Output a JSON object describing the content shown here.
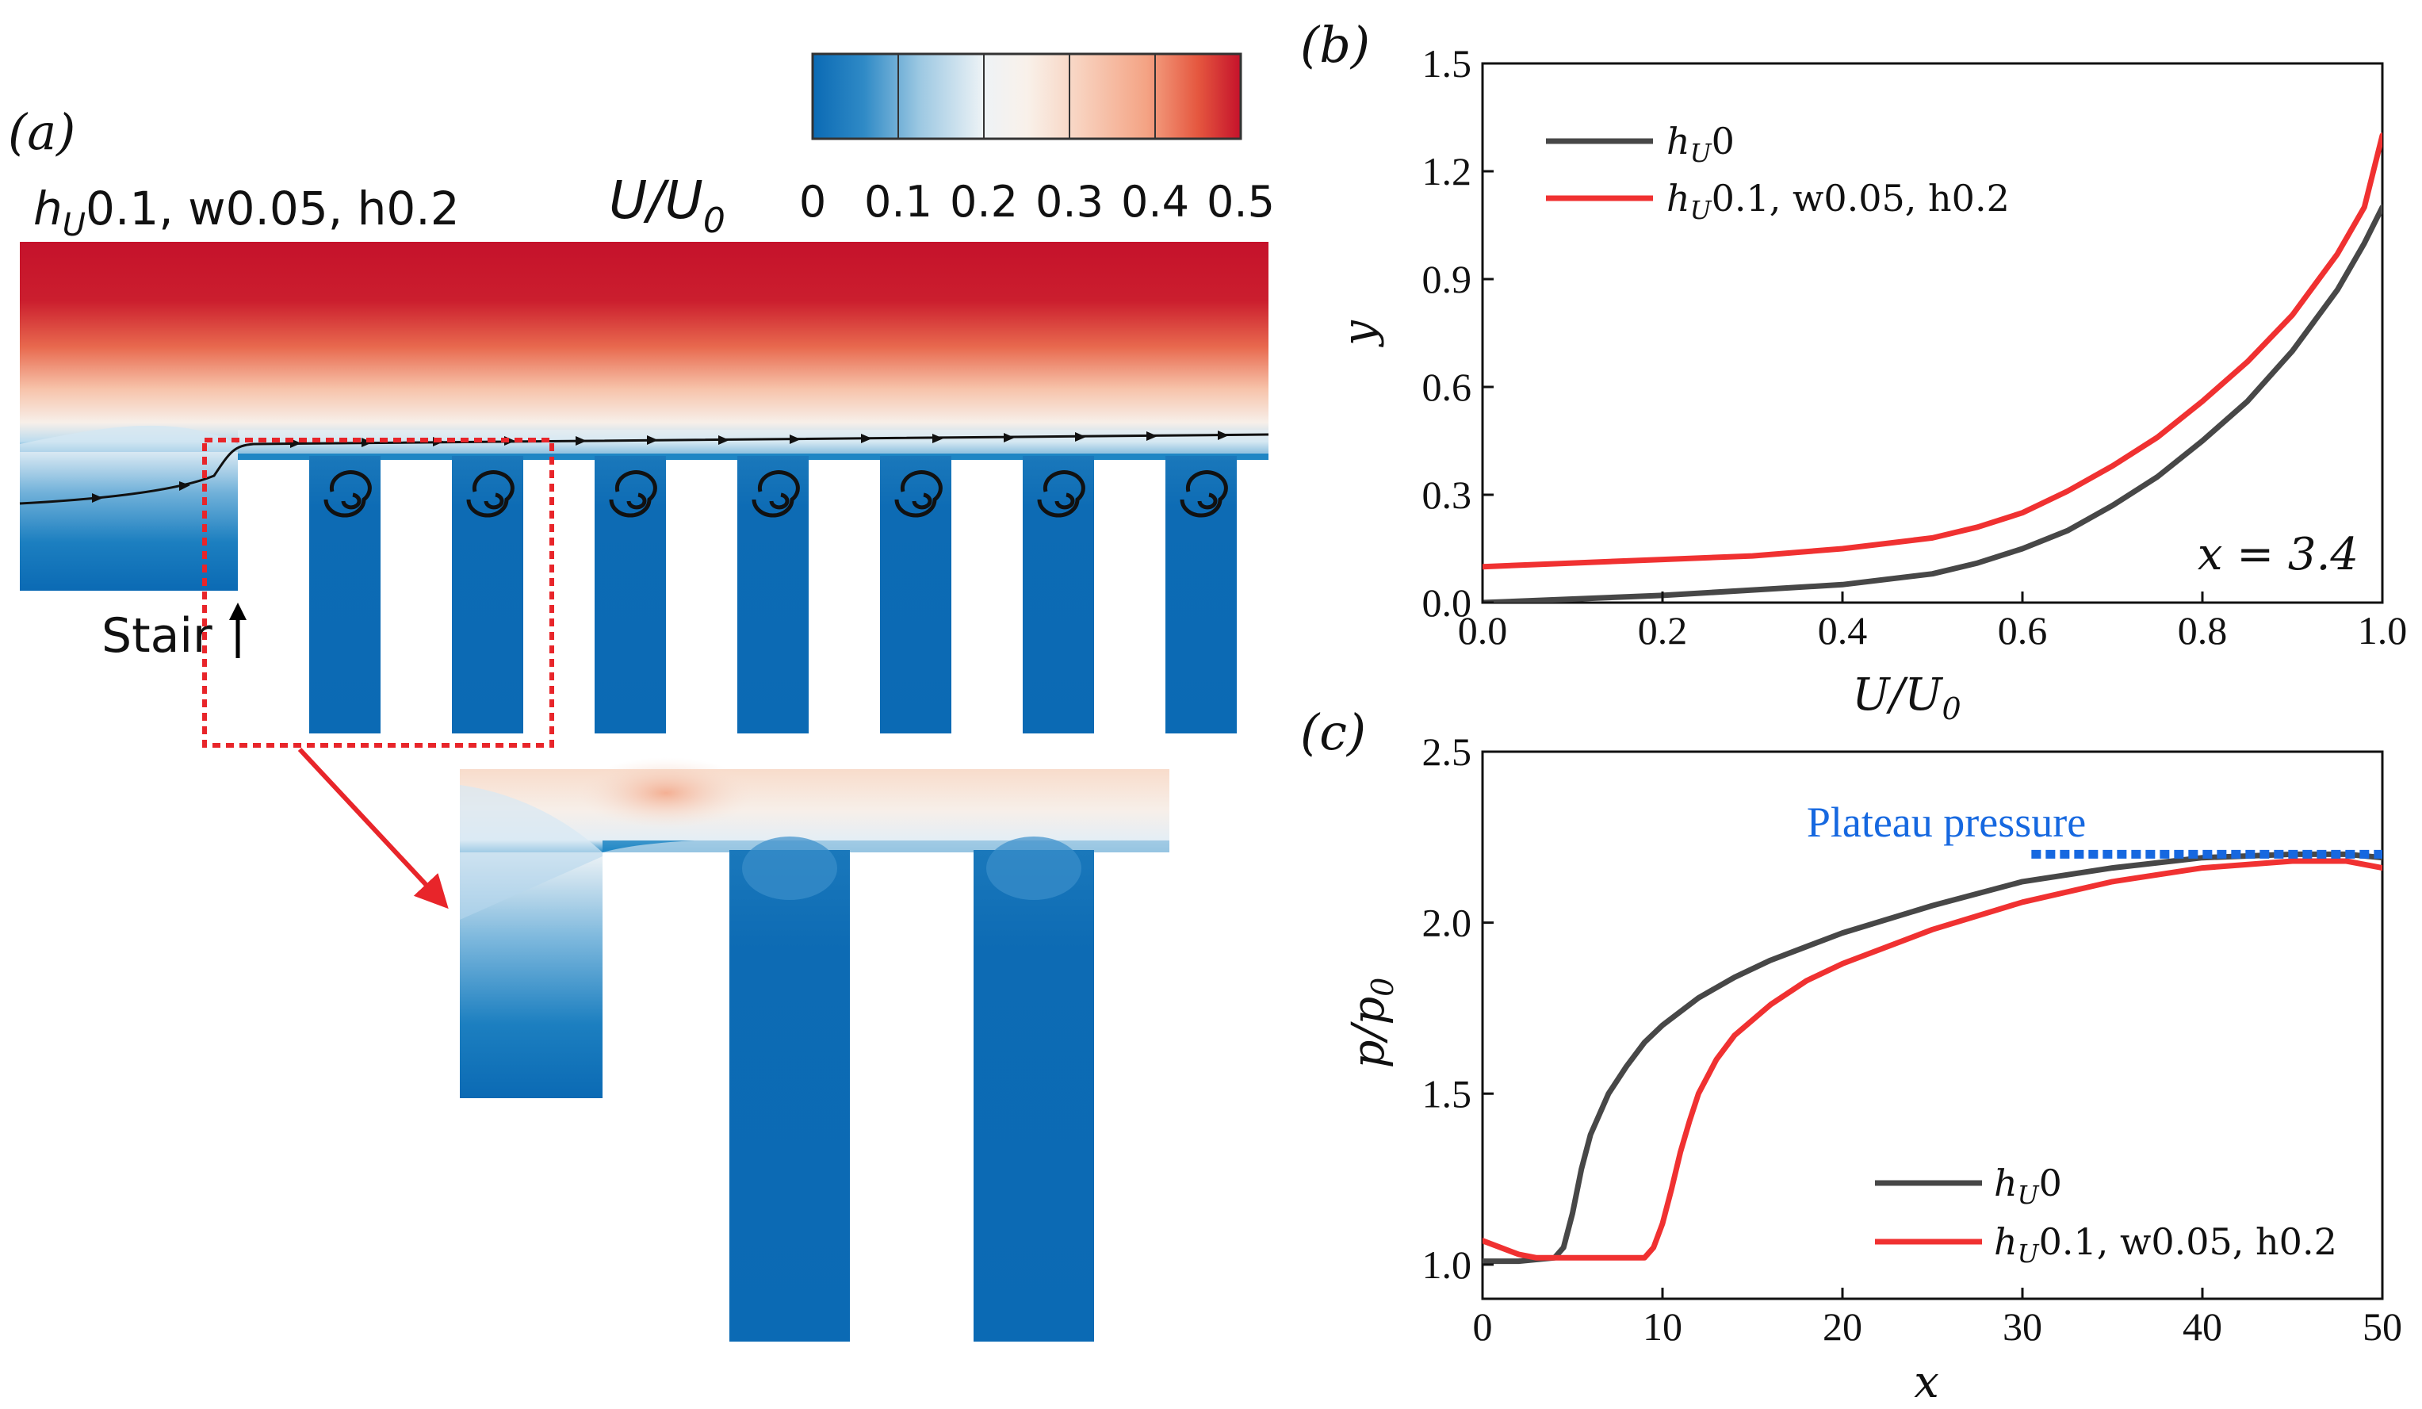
{
  "panels": {
    "a": "(a)",
    "b": "(b)",
    "c": "(c)"
  },
  "panel_a": {
    "case_label_h": "h",
    "case_label_sub": "U",
    "case_label_rest": "0.1, w0.05, h0.2",
    "colorbar_label_main": "U/U",
    "colorbar_label_sub": "0",
    "colorbar_ticks": [
      "0",
      "0.1",
      "0.2",
      "0.3",
      "0.4",
      "0.5"
    ],
    "stair_label": "Stair",
    "colors": {
      "low": "#0b6ab4",
      "mid": "#f6f4f2",
      "high": "#c5122b",
      "zoom_box": "#e8252a"
    }
  },
  "chart_data": [
    {
      "type": "line",
      "panel": "b",
      "title": "",
      "xlabel_main": "U/U",
      "xlabel_sub": "0",
      "ylabel": "y",
      "xlim": [
        0,
        1.0
      ],
      "ylim": [
        0,
        1.5
      ],
      "xticks": [
        "0.0",
        "0.2",
        "0.4",
        "0.6",
        "0.8",
        "1.0"
      ],
      "yticks": [
        "0.0",
        "0.3",
        "0.6",
        "0.9",
        "1.2",
        "1.5"
      ],
      "annotation": "x = 3.4",
      "legend_position": "top-left",
      "series": [
        {
          "name": "hU0",
          "legend_h": "h",
          "legend_sub": "U",
          "legend_rest": "0",
          "color": "#474747",
          "x": [
            0.0,
            0.1,
            0.2,
            0.3,
            0.4,
            0.5,
            0.55,
            0.6,
            0.65,
            0.7,
            0.75,
            0.8,
            0.85,
            0.9,
            0.95,
            0.98,
            1.0
          ],
          "y": [
            0.0,
            0.01,
            0.02,
            0.035,
            0.05,
            0.08,
            0.11,
            0.15,
            0.2,
            0.27,
            0.35,
            0.45,
            0.56,
            0.7,
            0.87,
            1.0,
            1.1
          ]
        },
        {
          "name": "hU0.1, w0.05, h0.2",
          "legend_h": "h",
          "legend_sub": "U",
          "legend_rest": "0.1, w0.05, h0.2",
          "color": "#f03131",
          "x": [
            0.0,
            0.1,
            0.2,
            0.3,
            0.4,
            0.5,
            0.55,
            0.6,
            0.65,
            0.7,
            0.75,
            0.8,
            0.85,
            0.9,
            0.95,
            0.98,
            1.0
          ],
          "y": [
            0.1,
            0.11,
            0.12,
            0.13,
            0.15,
            0.18,
            0.21,
            0.25,
            0.31,
            0.38,
            0.46,
            0.56,
            0.67,
            0.8,
            0.97,
            1.1,
            1.3
          ]
        }
      ]
    },
    {
      "type": "line",
      "panel": "c",
      "title": "",
      "xlabel": "x",
      "ylabel_main": "p/p",
      "ylabel_sub": "0",
      "xlim": [
        0,
        50
      ],
      "ylim": [
        0.9,
        2.5
      ],
      "xticks": [
        "0",
        "10",
        "20",
        "30",
        "40",
        "50"
      ],
      "yticks": [
        "1.0",
        "1.5",
        "2.0",
        "2.5"
      ],
      "annotation": "Plateau pressure",
      "annotation_color": "#1668e0",
      "plateau_level": 2.2,
      "plateau_x": [
        30.5,
        50
      ],
      "legend_position": "bottom-right",
      "series": [
        {
          "name": "hU0",
          "legend_h": "h",
          "legend_sub": "U",
          "legend_rest": "0",
          "color": "#474747",
          "x": [
            0,
            2,
            4,
            4.5,
            5,
            5.5,
            6,
            7,
            8,
            9,
            10,
            12,
            14,
            16,
            18,
            20,
            25,
            30,
            35,
            40,
            45,
            48,
            50
          ],
          "y": [
            1.01,
            1.01,
            1.02,
            1.05,
            1.15,
            1.28,
            1.38,
            1.5,
            1.58,
            1.65,
            1.7,
            1.78,
            1.84,
            1.89,
            1.93,
            1.97,
            2.05,
            2.12,
            2.16,
            2.19,
            2.2,
            2.2,
            2.19
          ]
        },
        {
          "name": "hU0.1, w0.05, h0.2",
          "legend_h": "h",
          "legend_sub": "U",
          "legend_rest": "0.1, w0.05, h0.2",
          "color": "#f03131",
          "x": [
            0,
            1,
            2,
            3,
            4,
            5,
            7,
            9,
            9.5,
            10,
            10.5,
            11,
            11.5,
            12,
            13,
            14,
            16,
            18,
            20,
            25,
            30,
            35,
            40,
            45,
            48,
            50
          ],
          "y": [
            1.07,
            1.05,
            1.03,
            1.02,
            1.02,
            1.02,
            1.02,
            1.02,
            1.05,
            1.12,
            1.22,
            1.33,
            1.42,
            1.5,
            1.6,
            1.67,
            1.76,
            1.83,
            1.88,
            1.98,
            2.06,
            2.12,
            2.16,
            2.18,
            2.18,
            2.16
          ]
        }
      ]
    }
  ]
}
